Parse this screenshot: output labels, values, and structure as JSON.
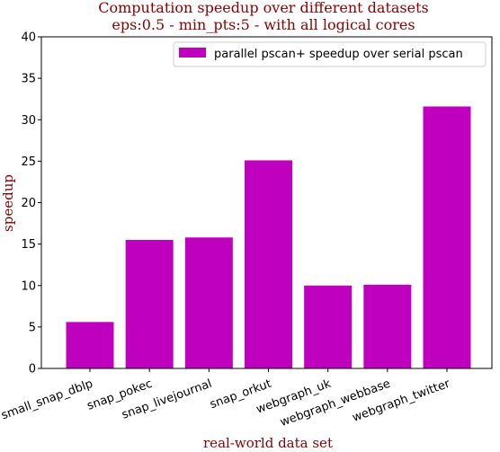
{
  "chart_data": {
    "type": "bar",
    "title": "Computation speedup over different datasets",
    "subtitle": "eps:0.5 - min_pts:5 - with all logical cores",
    "xlabel": "real-world data set",
    "ylabel": "speedup",
    "ylim": [
      0,
      40
    ],
    "yticks": [
      "0",
      "5",
      "10",
      "15",
      "20",
      "25",
      "30",
      "35",
      "40"
    ],
    "categories": [
      "small_snap_dblp",
      "snap_pokec",
      "snap_livejournal",
      "snap_orkut",
      "webgraph_uk",
      "webgraph_webbase",
      "webgraph_twitter"
    ],
    "series": [
      {
        "name": "parallel pscan+ speedup over serial pscan",
        "values": [
          5.6,
          15.5,
          15.8,
          25.1,
          10.0,
          10.1,
          31.6
        ],
        "color": "#bf00bf"
      }
    ],
    "legend_position": "top-right",
    "grid": false,
    "title_color": "#8b0000"
  }
}
